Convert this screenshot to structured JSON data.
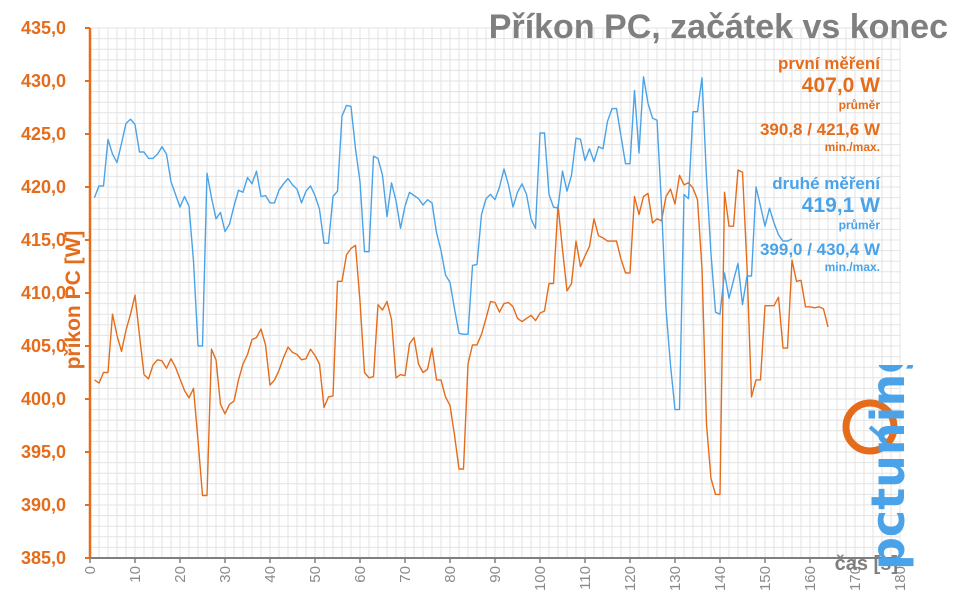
{
  "chart_data": {
    "type": "line",
    "title": "Příkon PC, začátek vs konec",
    "xlabel": "čas [s]",
    "ylabel": "příkon PC [W]",
    "xlim": [
      0,
      180
    ],
    "ylim": [
      385,
      435
    ],
    "x_ticks": [
      "0",
      "10",
      "20",
      "30",
      "40",
      "50",
      "60",
      "70",
      "80",
      "90",
      "100",
      "110",
      "120",
      "130",
      "140",
      "150",
      "160",
      "170",
      "180"
    ],
    "y_ticks": [
      "385,0",
      "390,0",
      "395,0",
      "400,0",
      "405,0",
      "410,0",
      "415,0",
      "420,0",
      "425,0",
      "430,0",
      "435,0"
    ],
    "grid": true,
    "series": [
      {
        "name": "první měření",
        "color": "#e46c1b",
        "values": [
          401.8,
          401.5,
          402.5,
          402.5,
          408.0,
          406.0,
          404.5,
          406.5,
          408.0,
          409.8,
          406.0,
          402.3,
          401.9,
          403.2,
          403.7,
          403.6,
          402.9,
          403.8,
          403.0,
          401.9,
          400.8,
          400.1,
          401.0,
          396.1,
          390.9,
          390.9,
          404.7,
          403.7,
          399.5,
          398.6,
          399.5,
          399.8,
          401.8,
          403.3,
          404.2,
          405.6,
          405.8,
          406.6,
          405.1,
          401.3,
          401.8,
          402.7,
          403.9,
          404.9,
          404.4,
          404.2,
          403.7,
          403.8,
          404.7,
          404.1,
          403.3,
          399.2,
          400.2,
          400.3,
          411.1,
          411.1,
          413.6,
          414.2,
          414.5,
          409.2,
          402.5,
          402.0,
          402.1,
          408.9,
          408.4,
          409.2,
          407.5,
          402.0,
          402.3,
          402.2,
          405.2,
          405.8,
          403.3,
          402.5,
          402.8,
          404.8,
          401.8,
          401.8,
          400.2,
          399.4,
          396.6,
          393.4,
          393.4,
          403.3,
          405.1,
          405.1,
          406.1,
          407.6,
          409.2,
          409.1,
          408.2,
          409.0,
          409.1,
          408.7,
          407.6,
          407.3,
          407.6,
          407.9,
          407.4,
          408.1,
          408.3,
          410.9,
          410.9,
          418.3,
          414.1,
          410.2,
          410.9,
          414.9,
          412.5,
          413.5,
          414.4,
          417.0,
          415.4,
          415.2,
          414.9,
          414.9,
          414.9,
          413.2,
          411.9,
          411.9,
          419.1,
          417.4,
          419.1,
          419.4,
          416.6,
          417.0,
          416.8,
          419.1,
          419.8,
          418.4,
          421.1,
          420.2,
          420.4,
          419.9,
          418.8,
          412.3,
          397.6,
          392.5,
          391.0,
          391.0,
          419.5,
          416.3,
          416.3,
          421.6,
          421.4,
          412.5,
          400.2,
          401.8,
          401.8,
          408.8,
          408.8,
          408.8,
          409.6,
          404.8,
          404.8,
          413.1,
          411.1,
          411.2,
          408.7,
          408.7,
          408.6,
          408.7,
          408.5,
          406.8
        ]
      },
      {
        "name": "druhé měření",
        "color": "#4aa3e8",
        "values": [
          419.0,
          420.1,
          420.1,
          424.5,
          423.1,
          422.3,
          424.1,
          426.0,
          426.4,
          425.9,
          423.3,
          423.3,
          422.7,
          422.7,
          423.1,
          423.8,
          423.1,
          420.5,
          419.3,
          418.1,
          419.1,
          418.2,
          413.0,
          405.0,
          405.0,
          421.3,
          419.0,
          417.0,
          417.6,
          415.8,
          416.5,
          418.2,
          419.7,
          419.5,
          420.9,
          420.3,
          421.5,
          419.1,
          419.2,
          418.5,
          418.5,
          419.7,
          420.3,
          420.8,
          420.2,
          419.8,
          418.5,
          419.6,
          420.1,
          419.2,
          417.9,
          414.7,
          414.7,
          419.1,
          419.6,
          426.7,
          427.7,
          427.6,
          423.6,
          420.5,
          413.9,
          413.9,
          422.9,
          422.7,
          421.1,
          417.2,
          420.4,
          418.7,
          416.1,
          418.2,
          419.5,
          419.2,
          418.9,
          418.3,
          418.8,
          418.5,
          415.7,
          414.0,
          411.7,
          411.0,
          408.5,
          406.2,
          406.1,
          406.1,
          412.6,
          412.7,
          417.4,
          418.9,
          419.3,
          418.8,
          420.0,
          421.7,
          420.2,
          418.1,
          419.5,
          420.3,
          419.3,
          417.0,
          416.1,
          425.1,
          425.1,
          419.3,
          418.1,
          418.0,
          421.5,
          419.6,
          421.1,
          424.6,
          424.5,
          422.5,
          423.6,
          422.4,
          423.8,
          423.6,
          426.2,
          427.4,
          427.4,
          424.8,
          422.2,
          422.2,
          429.1,
          423.2,
          430.4,
          427.9,
          426.5,
          426.3,
          418.3,
          408.5,
          403.2,
          399.0,
          399.0,
          419.3,
          418.9,
          427.1,
          427.1,
          430.3,
          420.9,
          413.7,
          408.2,
          408.0,
          411.9,
          409.5,
          411.2,
          412.8,
          408.9,
          411.6,
          411.6,
          420.0,
          418.2,
          416.3,
          418.0,
          416.6,
          415.5,
          414.9,
          414.9,
          415.1
        ]
      }
    ],
    "labels": {
      "s1_name": "první měření",
      "s1_avg": "407,0 W",
      "s1_avg_label": "průměr",
      "s1_minmax": "390,8 / 421,6 W",
      "s1_minmax_label": "min./max.",
      "s2_name": "druhé měření",
      "s2_avg": "419,1 W",
      "s2_avg_label": "průměr",
      "s2_minmax": "399,0 / 430,4 W",
      "s2_minmax_label": "min./max."
    }
  },
  "logo": {
    "text": "pctuning",
    "color": "#4aa3e8",
    "accent": "#e46c1b"
  }
}
